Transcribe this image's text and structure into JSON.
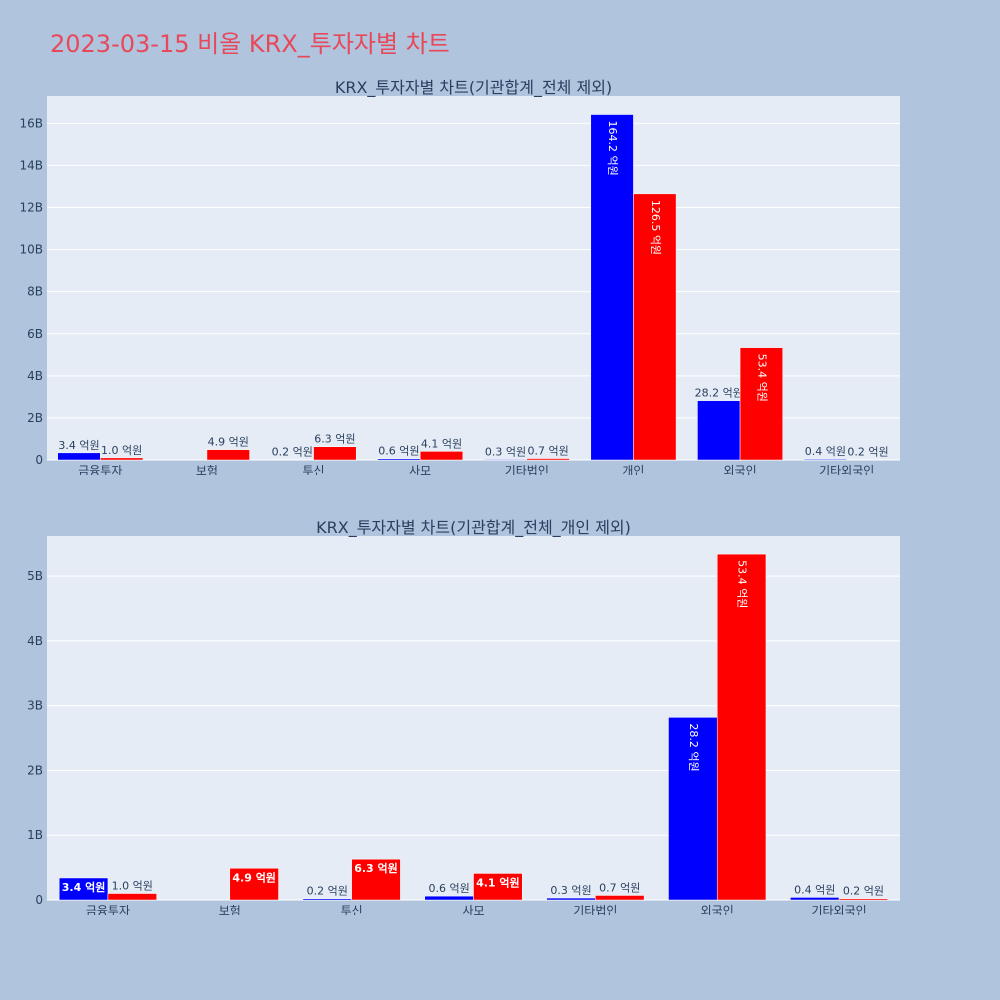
{
  "title": "2023-03-15 비올 KRX_투자자별 차트",
  "colors": {
    "buy": "#0000ff",
    "sell": "#ff0000",
    "plot_bg": "#e5ecf6",
    "page_bg": "#b0c4de",
    "title": "#e8495a"
  },
  "chart_data": [
    {
      "type": "bar",
      "title": "KRX_투자자별 차트(기관합계_전체 제외)",
      "categories": [
        "금융투자",
        "보험",
        "투신",
        "사모",
        "기타법인",
        "개인",
        "외국인",
        "기타외국인"
      ],
      "series": [
        {
          "color": "#0000ff",
          "values": [
            0.34,
            0,
            0.02,
            0.06,
            0.03,
            16.42,
            2.82,
            0.04
          ],
          "labels": [
            "3.4 억원",
            "",
            "0.2 억원",
            "0.6 억원",
            "0.3 억원",
            "164.2 억원",
            "28.2 억원",
            "0.4 억원"
          ]
        },
        {
          "color": "#ff0000",
          "values": [
            0.1,
            0.49,
            0.63,
            0.41,
            0.07,
            12.65,
            5.34,
            0.02
          ],
          "labels": [
            "1.0 억원",
            "4.9 억원",
            "6.3 억원",
            "4.1 억원",
            "0.7 억원",
            "126.5 억원",
            "53.4 억원",
            "0.2 억원"
          ]
        }
      ],
      "unit": "B",
      "yticks": [
        "0",
        "2B",
        "4B",
        "6B",
        "8B",
        "10B",
        "12B",
        "14B",
        "16B"
      ],
      "ylim": [
        0,
        17.3
      ],
      "grid": true
    },
    {
      "type": "bar",
      "title": "KRX_투자자별 차트(기관합계_전체_개인 제외)",
      "categories": [
        "금융투자",
        "보험",
        "투신",
        "사모",
        "기타법인",
        "외국인",
        "기타외국인"
      ],
      "series": [
        {
          "color": "#0000ff",
          "values": [
            0.34,
            0,
            0.02,
            0.06,
            0.03,
            2.82,
            0.04
          ],
          "labels": [
            "3.4 억원",
            "",
            "0.2 억원",
            "0.6 억원",
            "0.3 억원",
            "28.2 억원",
            "0.4 억원"
          ]
        },
        {
          "color": "#ff0000",
          "values": [
            0.1,
            0.49,
            0.63,
            0.41,
            0.07,
            5.34,
            0.02
          ],
          "labels": [
            "1.0 억원",
            "4.9 억원",
            "6.3 억원",
            "4.1 억원",
            "0.7 억원",
            "53.4 억원",
            "0.2 억원"
          ]
        }
      ],
      "unit": "B",
      "yticks": [
        "0",
        "1B",
        "2B",
        "3B",
        "4B",
        "5B"
      ],
      "ylim": [
        0,
        5.62
      ],
      "grid": true
    }
  ]
}
